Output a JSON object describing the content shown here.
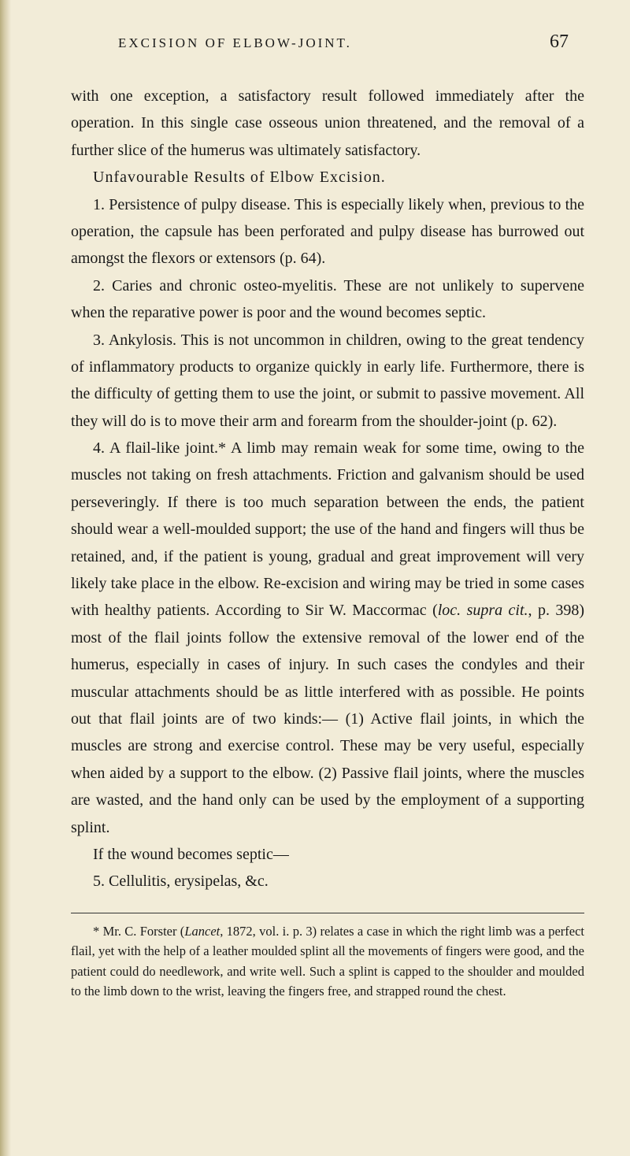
{
  "header": {
    "running_title": "EXCISION OF ELBOW-JOINT.",
    "page_number": "67"
  },
  "paragraphs": {
    "p1": "with one exception, a satisfactory result followed immediately after the operation. In this single case osseous union threatened, and the removal of a further slice of the humerus was ultimately satisfactory.",
    "subhead": "Unfavourable Results of Elbow Excision.",
    "p2": "1. Persistence of pulpy disease. This is especially likely when, previous to the operation, the capsule has been perforated and pulpy disease has burrowed out amongst the flexors or extensors (p. 64).",
    "p3": "2. Caries and chronic osteo-myelitis. These are not unlikely to supervene when the reparative power is poor and the wound becomes septic.",
    "p4": "3. Ankylosis. This is not uncommon in children, owing to the great tendency of inflammatory products to organize quickly in early life. Furthermore, there is the difficulty of getting them to use the joint, or submit to passive movement. All they will do is to move their arm and forearm from the shoulder-joint (p. 62).",
    "p5_a": "4. A flail-like joint.* A limb may remain weak for some time, owing to the muscles not taking on fresh attachments. Friction and galvanism should be used perseveringly. If there is too much separation between the ends, the patient should wear a well-moulded support; the use of the hand and fingers will thus be retained, and, if the patient is young, gradual and great improvement will very likely take place in the elbow. Re-excision and wiring may be tried in some cases with healthy patients. According to Sir W. Maccormac (",
    "p5_cite": "loc. supra cit.",
    "p5_b": ", p. 398) most of the flail joints follow the extensive removal of the lower end of the humerus, especially in cases of injury. In such cases the condyles and their muscular attachments should be as little interfered with as possible. He points out that flail joints are of two kinds:— (1) Active flail joints, in which the muscles are strong and exercise control. These may be very useful, especially when aided by a support to the elbow. (2) Passive flail joints, where the muscles are wasted, and the hand only can be used by the employment of a supporting splint.",
    "p6": "If the wound becomes septic—",
    "p7": "5. Cellulitis, erysipelas, &c."
  },
  "footnote": {
    "mark": "* ",
    "text_a": "Mr. C. Forster (",
    "cite": "Lancet",
    "text_b": ", 1872, vol. i. p. 3) relates a case in which the right limb was a perfect flail, yet with the help of a leather moulded splint all the movements of fingers were good, and the patient could do needlework, and write well. Such a splint is capped to the shoulder and moulded to the limb down to the wrist, leaving the fingers free, and strapped round the chest."
  },
  "colors": {
    "page_bg": "#f2ecd8",
    "text": "#1a1a1a",
    "edge_dark": "#b8ad7f"
  },
  "typography": {
    "body_fontsize": 20,
    "header_fontsize": 17,
    "footnote_fontsize": 16.5,
    "line_height": 1.72
  }
}
